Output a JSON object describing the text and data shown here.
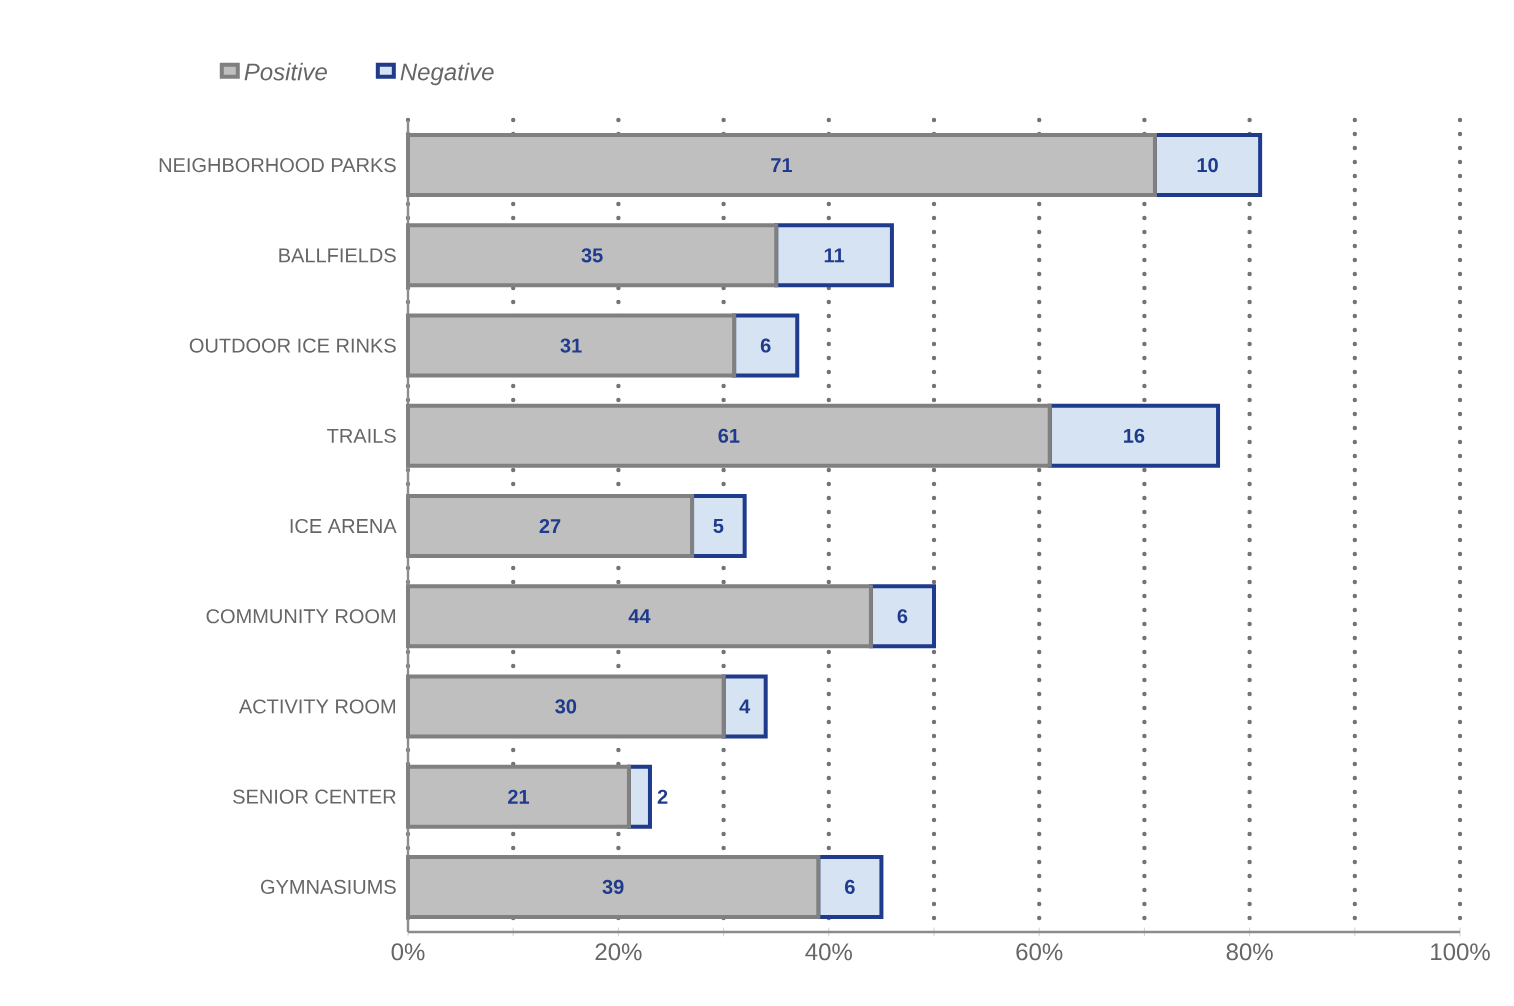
{
  "chart_data": {
    "type": "bar",
    "orientation": "horizontal",
    "stacked": true,
    "data_labels": true,
    "legend": "top",
    "grid": "x",
    "categories": [
      "NEIGHBORHOOD PARKS",
      "BALLFIELDS",
      "OUTDOOR ICE RINKS",
      "TRAILS",
      "ICE ARENA",
      "COMMUNITY ROOM",
      "ACTIVITY ROOM",
      "SENIOR CENTER",
      "GYMNASIUMS"
    ],
    "series": [
      {
        "name": "Positive",
        "color": "#c0bfc0",
        "values": [
          71,
          35,
          31,
          61,
          27,
          44,
          30,
          21,
          39
        ]
      },
      {
        "name": "Negative",
        "color": "#d6e3f3",
        "values": [
          10,
          11,
          6,
          16,
          5,
          6,
          4,
          2,
          6
        ]
      }
    ],
    "xlim": [
      0,
      100
    ],
    "xticks": [
      {
        "value": 0,
        "label": "0%"
      },
      {
        "value": 10,
        "label": null
      },
      {
        "value": 20,
        "label": "20%"
      },
      {
        "value": 30,
        "label": null
      },
      {
        "value": 40,
        "label": "40%"
      },
      {
        "value": 50,
        "label": null
      },
      {
        "value": 60,
        "label": "60%"
      },
      {
        "value": 70,
        "label": null
      },
      {
        "value": 80,
        "label": "80%"
      },
      {
        "value": 90,
        "label": null
      },
      {
        "value": 100,
        "label": "100%"
      }
    ]
  }
}
